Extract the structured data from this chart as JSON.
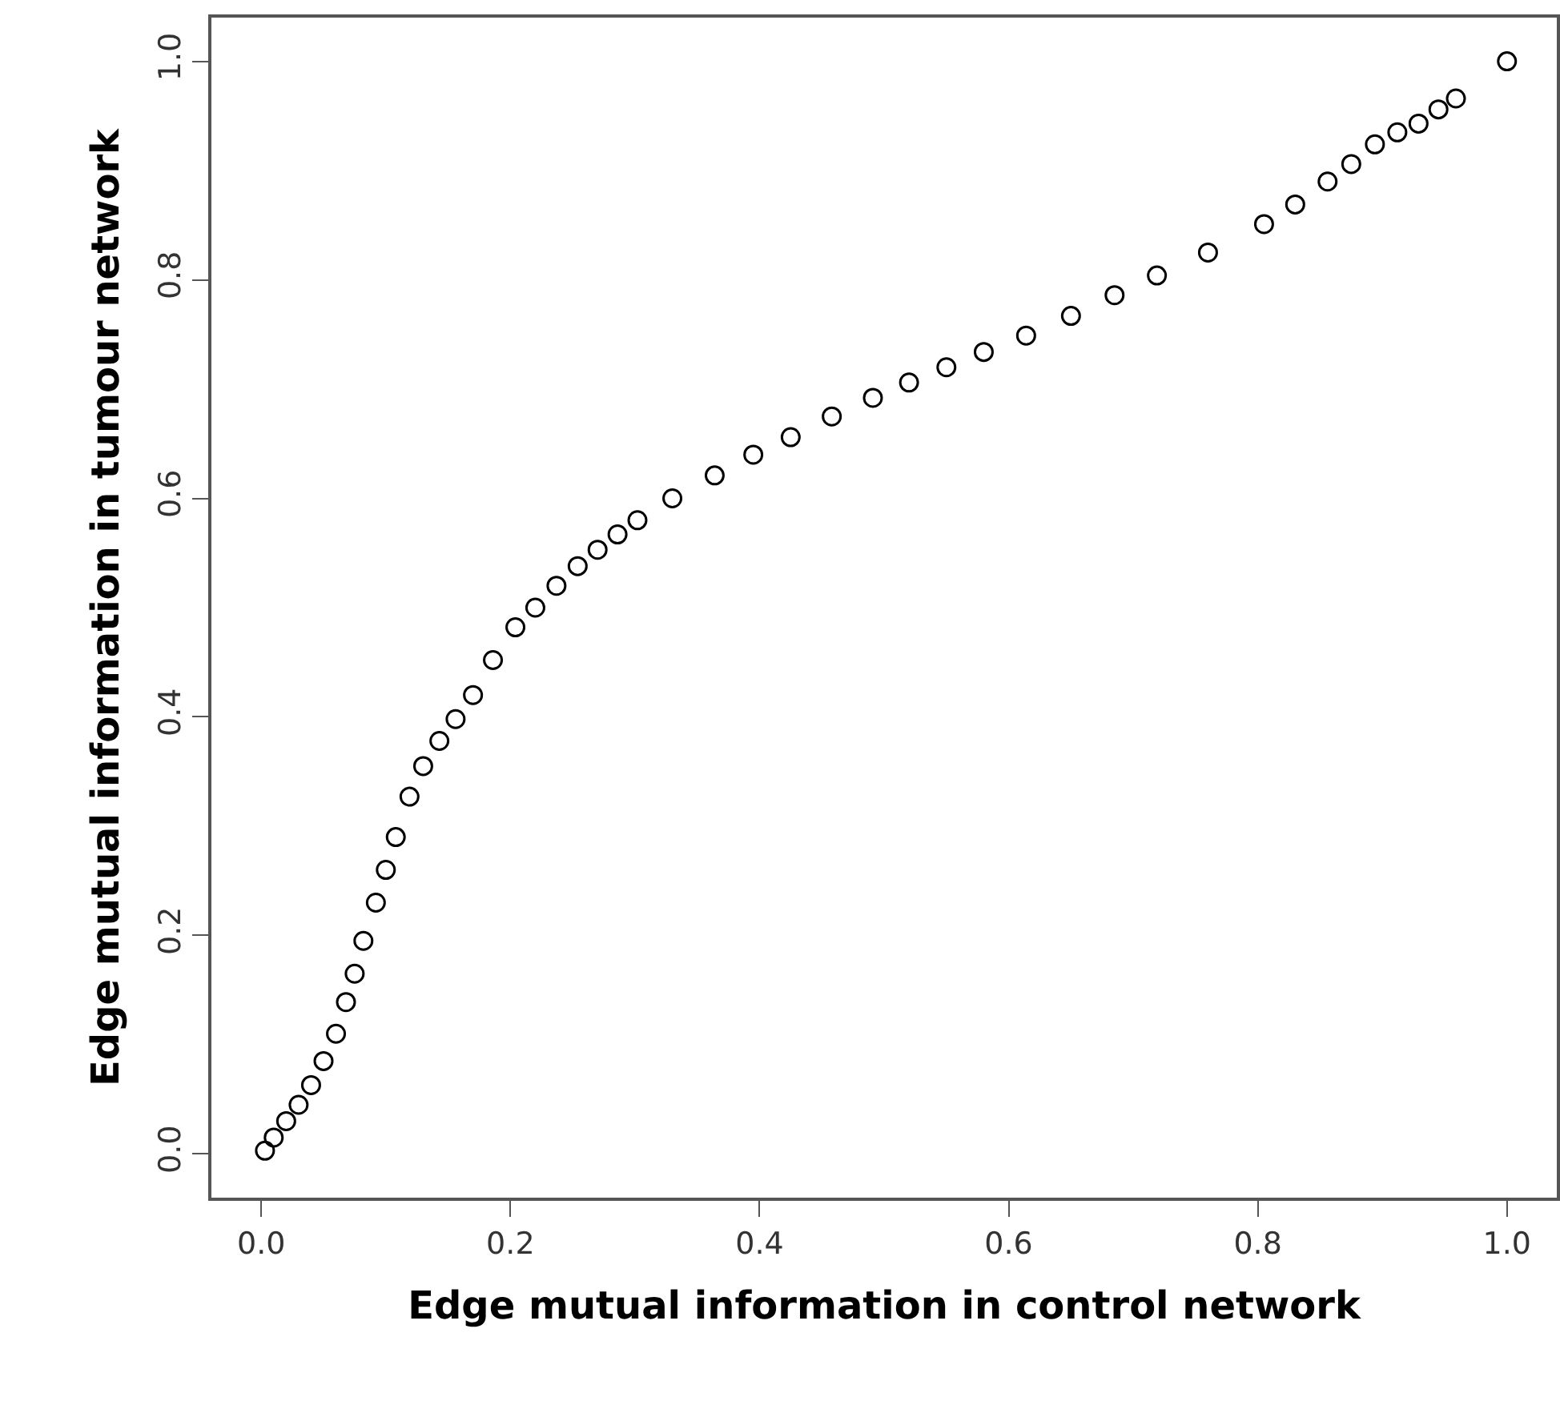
{
  "chart_data": {
    "type": "scatter",
    "xlabel": "Edge mutual information in control network",
    "ylabel": "Edge mutual information in tumour network",
    "x": [
      0.003,
      0.01,
      0.02,
      0.03,
      0.04,
      0.05,
      0.06,
      0.068,
      0.075,
      0.082,
      0.092,
      0.1,
      0.108,
      0.119,
      0.13,
      0.143,
      0.156,
      0.17,
      0.186,
      0.204,
      0.22,
      0.237,
      0.254,
      0.27,
      0.286,
      0.302,
      0.33,
      0.364,
      0.395,
      0.425,
      0.458,
      0.491,
      0.52,
      0.55,
      0.58,
      0.614,
      0.65,
      0.685,
      0.719,
      0.76,
      0.805,
      0.83,
      0.856,
      0.875,
      0.894,
      0.912,
      0.929,
      0.945,
      0.959,
      1.0
    ],
    "series": [
      {
        "color": "#000000",
        "values": [
          0.003,
          0.015,
          0.03,
          0.045,
          0.063,
          0.085,
          0.11,
          0.139,
          0.165,
          0.195,
          0.23,
          0.26,
          0.29,
          0.327,
          0.355,
          0.378,
          0.398,
          0.42,
          0.452,
          0.482,
          0.5,
          0.52,
          0.538,
          0.553,
          0.567,
          0.58,
          0.6,
          0.621,
          0.64,
          0.656,
          0.675,
          0.692,
          0.706,
          0.72,
          0.734,
          0.749,
          0.767,
          0.786,
          0.804,
          0.825,
          0.851,
          0.869,
          0.89,
          0.906,
          0.924,
          0.935,
          0.943,
          0.956,
          0.966,
          1.0
        ]
      }
    ],
    "xlim": [
      -0.04,
      1.04
    ],
    "ylim": [
      -0.04,
      1.04
    ],
    "xticks": [
      {
        "value": 0,
        "label": "0.0"
      },
      0.2,
      0.4,
      0.6,
      0.8,
      {
        "value": 1,
        "label": "1.0"
      }
    ],
    "yticks": [
      {
        "value": 0,
        "label": "0.0"
      },
      0.2,
      0.4,
      0.6,
      0.8,
      {
        "value": 1,
        "label": "1.0"
      }
    ],
    "marker": "circle",
    "grid": false
  }
}
